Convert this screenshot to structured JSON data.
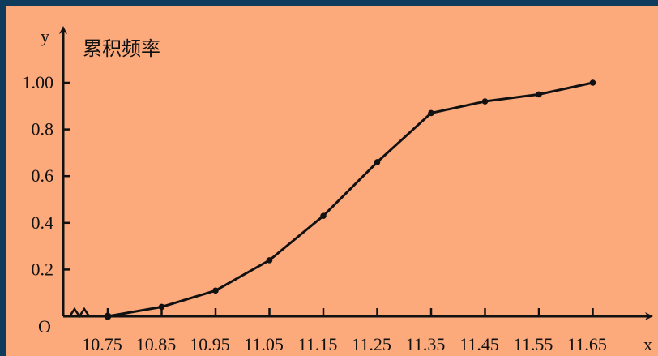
{
  "chart_data": {
    "type": "line",
    "title": "累积频率",
    "xlabel": "x",
    "ylabel": "y",
    "origin_label": "O",
    "x_tick_labels": [
      "10.75",
      "10.85",
      "10.95",
      "11.05",
      "11.15",
      "11.25",
      "11.35",
      "11.45",
      "11.55",
      "11.65"
    ],
    "y_tick_labels": [
      "0.2",
      "0.4",
      "0.6",
      "0.8",
      "1.00"
    ],
    "y_ticks": [
      0.2,
      0.4,
      0.6,
      0.8,
      1.0
    ],
    "x_range": [
      10.75,
      11.65
    ],
    "ylim": [
      0,
      1.0
    ],
    "axis_break": true,
    "grid": false,
    "series": [
      {
        "x": [
          10.75,
          10.85,
          10.95,
          11.05,
          11.15,
          11.25,
          11.35,
          11.45,
          11.55,
          11.65
        ],
        "y": [
          0,
          0.04,
          0.11,
          0.24,
          0.43,
          0.66,
          0.87,
          0.92,
          0.95,
          1.0
        ]
      }
    ]
  },
  "colors": {
    "background": "#fca97c",
    "frame": "#0f3c5c",
    "line": "#111111"
  }
}
